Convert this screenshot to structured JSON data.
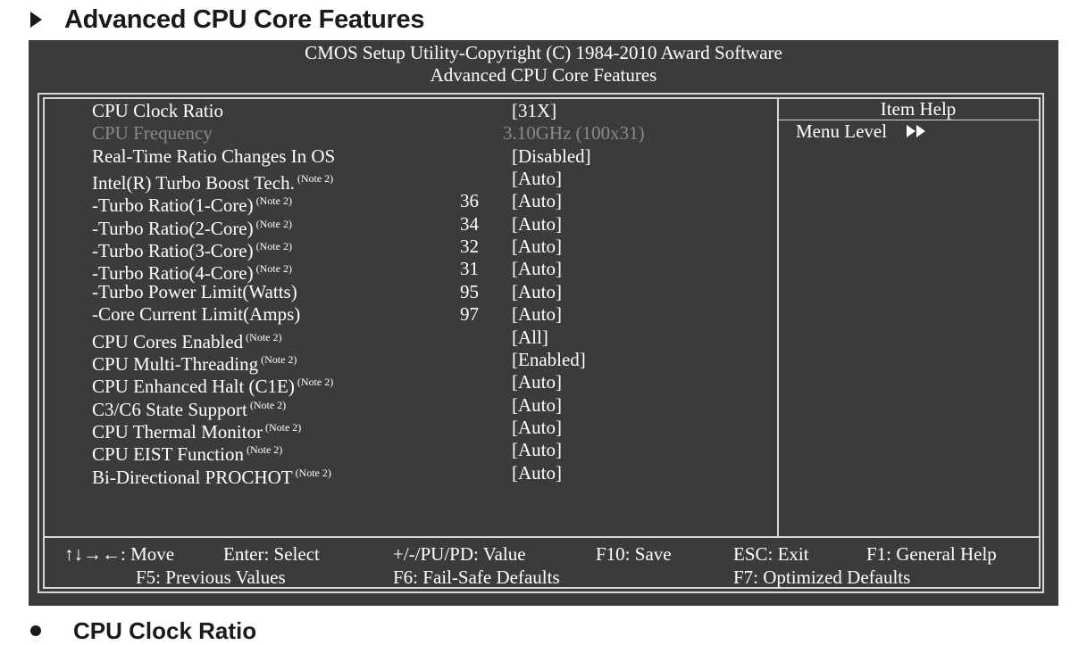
{
  "heading": "Advanced CPU Core Features",
  "subheading": "CPU Clock Ratio",
  "bios": {
    "title_line1": "CMOS Setup Utility-Copyright (C) 1984-2010 Award Software",
    "title_line2": "Advanced CPU Core Features",
    "help": {
      "title": "Item Help",
      "menu_level": "Menu Level"
    },
    "settings": [
      {
        "label": "CPU Clock Ratio",
        "note": "",
        "number": "",
        "value": "[31X]",
        "dim": false
      },
      {
        "label": "CPU Frequency",
        "note": "",
        "number": "",
        "value": "3.10GHz (100x31)",
        "dim": true
      },
      {
        "label": "Real-Time Ratio Changes In OS",
        "note": "",
        "number": "",
        "value": "[Disabled]",
        "dim": false
      },
      {
        "label": "Intel(R) Turbo Boost Tech.",
        "note": "(Note 2)",
        "number": "",
        "value": "[Auto]",
        "dim": false
      },
      {
        "label": "-Turbo Ratio(1-Core)",
        "note": "(Note 2)",
        "number": "36",
        "value": "[Auto]",
        "dim": false
      },
      {
        "label": "-Turbo Ratio(2-Core)",
        "note": "(Note 2)",
        "number": "34",
        "value": "[Auto]",
        "dim": false
      },
      {
        "label": "-Turbo Ratio(3-Core)",
        "note": "(Note 2)",
        "number": "32",
        "value": "[Auto]",
        "dim": false
      },
      {
        "label": "-Turbo Ratio(4-Core)",
        "note": "(Note 2)",
        "number": "31",
        "value": "[Auto]",
        "dim": false
      },
      {
        "label": "-Turbo Power Limit(Watts)",
        "note": "",
        "number": "95",
        "value": "[Auto]",
        "dim": false
      },
      {
        "label": "-Core Current Limit(Amps)",
        "note": "",
        "number": "97",
        "value": "[Auto]",
        "dim": false
      },
      {
        "label": "CPU Cores Enabled",
        "note": "(Note 2)",
        "number": "",
        "value": "[All]",
        "dim": false
      },
      {
        "label": "CPU Multi-Threading",
        "note": "(Note 2)",
        "number": "",
        "value": "[Enabled]",
        "dim": false
      },
      {
        "label": "CPU Enhanced Halt (C1E)",
        "note": "(Note 2)",
        "number": "",
        "value": "[Auto]",
        "dim": false
      },
      {
        "label": "C3/C6 State Support",
        "note": "(Note 2)",
        "number": "",
        "value": "[Auto]",
        "dim": false
      },
      {
        "label": "CPU Thermal Monitor",
        "note": "(Note 2)",
        "number": "",
        "value": "[Auto]",
        "dim": false
      },
      {
        "label": "CPU EIST Function",
        "note": "(Note 2)",
        "number": "",
        "value": "[Auto]",
        "dim": false
      },
      {
        "label": "Bi-Directional PROCHOT",
        "note": "(Note 2)",
        "number": "",
        "value": "[Auto]",
        "dim": false
      }
    ],
    "footer": {
      "move": "↑↓→←: Move",
      "select": "Enter: Select",
      "value": "+/-/PU/PD: Value",
      "save": "F10: Save",
      "exit": "ESC: Exit",
      "help": "F1: General Help",
      "previous": "F5: Previous Values",
      "failsafe": "F6: Fail-Safe Defaults",
      "optimized": "F7: Optimized Defaults"
    }
  }
}
